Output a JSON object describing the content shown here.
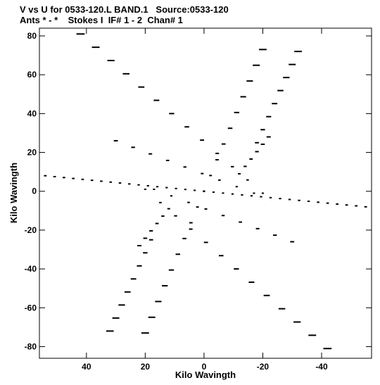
{
  "header": {
    "line1": "V vs U for 0533-120.L BAND.1   Source:0533-120",
    "line2": "Ants * - *    Stokes I  IF# 1 - 2  Chan# 1"
  },
  "chart_data": {
    "type": "scatter",
    "title": "V vs U for 0533-120.L BAND.1   Source:0533-120",
    "subtitle": "Ants * - *    Stokes I  IF# 1 - 2  Chan# 1",
    "xlabel": "Kilo Wavingth",
    "ylabel": "Kilo Wavingth",
    "xlim": [
      56,
      -57
    ],
    "ylim": [
      -86,
      84
    ],
    "x_inverted": true,
    "grid": false,
    "xticks": [
      40,
      20,
      0,
      -20,
      -40
    ],
    "yticks": [
      80,
      60,
      40,
      20,
      0,
      -20,
      -40,
      -60,
      -80
    ],
    "xtick_labels": [
      "40",
      "20",
      "0",
      "-20",
      "-40"
    ],
    "ytick_labels": [
      "80",
      "60",
      "40",
      "20",
      "0",
      "-20",
      "-40",
      "-60",
      "-80"
    ],
    "color": "#000000",
    "arms": [
      {
        "from": [
          42,
          81
        ],
        "to": [
          -20,
          -1
        ],
        "segments": 13
      },
      {
        "from": [
          -20,
          73
        ],
        "to": [
          0,
          0
        ],
        "segments": 10
      },
      {
        "from": [
          -32,
          72
        ],
        "to": [
          -18,
          25
        ],
        "segments": 8
      },
      {
        "from": [
          30,
          26
        ],
        "to": [
          -17,
          -1
        ],
        "segments": 9
      },
      {
        "from": [
          -22,
          28
        ],
        "to": [
          -12,
          9
        ],
        "segments": 6
      },
      {
        "from": [
          54,
          8
        ],
        "to": [
          0,
          0
        ],
        "segments": 18
      },
      {
        "from": [
          -55,
          -8
        ],
        "to": [
          0,
          0
        ],
        "segments": 18
      },
      {
        "from": [
          -42,
          -81
        ],
        "to": [
          20,
          1
        ],
        "segments": 13
      },
      {
        "from": [
          20,
          -73
        ],
        "to": [
          0,
          0
        ],
        "segments": 10
      },
      {
        "from": [
          32,
          -72
        ],
        "to": [
          18,
          -25
        ],
        "segments": 8
      },
      {
        "from": [
          -30,
          -26
        ],
        "to": [
          17,
          1
        ],
        "segments": 9
      },
      {
        "from": [
          22,
          -28
        ],
        "to": [
          12,
          -9
        ],
        "segments": 6
      }
    ]
  }
}
